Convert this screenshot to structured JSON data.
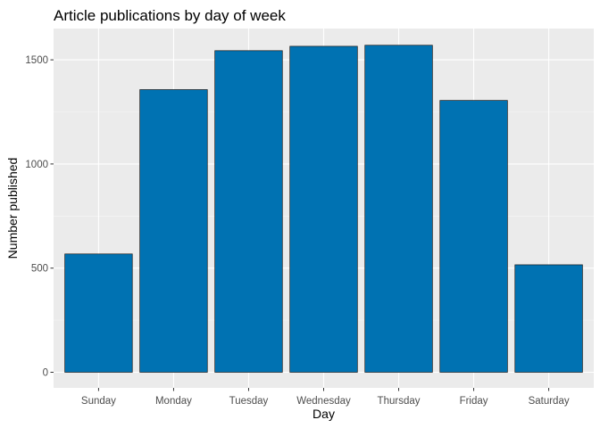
{
  "chart_data": {
    "type": "bar",
    "title": "Article publications by day of week",
    "xlabel": "Day",
    "ylabel": "Number published",
    "categories": [
      "Sunday",
      "Monday",
      "Tuesday",
      "Wednesday",
      "Thursday",
      "Friday",
      "Saturday"
    ],
    "values": [
      568,
      1357,
      1544,
      1565,
      1570,
      1305,
      516
    ],
    "ylim": [
      0,
      1650
    ],
    "yticks": [
      0,
      500,
      1000,
      1500
    ],
    "grid": true,
    "legend": "none",
    "colors": {
      "bar_fill": "#0072B2",
      "bar_stroke": "#1a1a1a",
      "panel_background": "#EBEBEB",
      "grid_major": "#FFFFFF",
      "grid_minor": "#F5F5F5"
    }
  }
}
